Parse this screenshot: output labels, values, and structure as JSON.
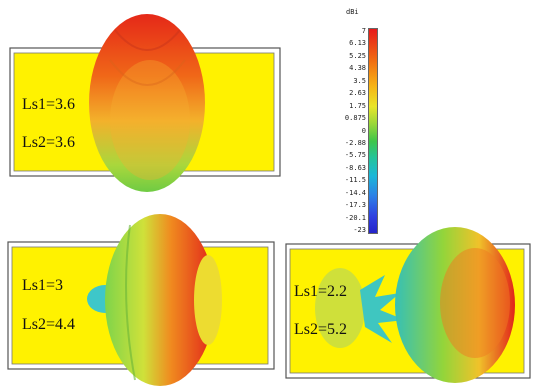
{
  "panels": [
    {
      "label_1": "Ls1=3.6",
      "label_2": "Ls2=3.6"
    },
    {
      "label_1": "Ls1=3",
      "label_2": "Ls2=4.4"
    },
    {
      "label_1": "Ls1=2.2",
      "label_2": "Ls2=5.2"
    }
  ],
  "colorbar": {
    "unit": "dBi",
    "ticks": [
      "7",
      "6.13",
      "5.25",
      "4.38",
      "3.5",
      "2.63",
      "1.75",
      "0.875",
      "0",
      "-2.88",
      "-5.75",
      "-8.63",
      "-11.5",
      "-14.4",
      "-17.3",
      "-20.1",
      "-23"
    ],
    "colors": [
      "#e6191a",
      "#f06a12",
      "#f7b416",
      "#e9e52a",
      "#95d63a",
      "#3ec54a",
      "#24c499",
      "#1bb7d8",
      "#2d7fe6",
      "#2f3fe0",
      "#2423c9"
    ]
  },
  "colors": {
    "substrate": "#fff200",
    "substrate_border": "#555555",
    "pattern_top": "#e33a1b",
    "pattern_mid": "#f2c42a",
    "pattern_low": "#7fd44a"
  }
}
